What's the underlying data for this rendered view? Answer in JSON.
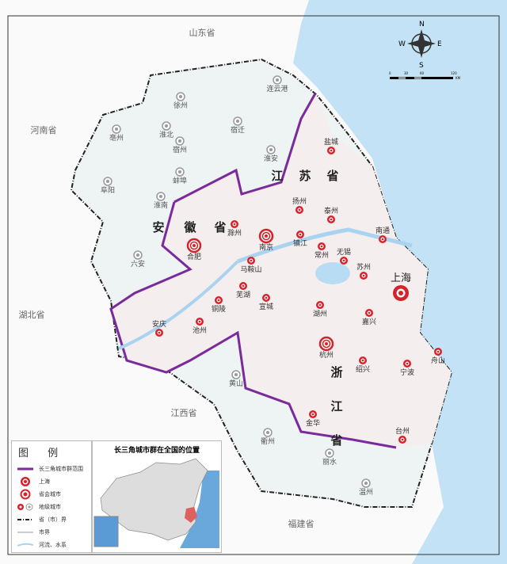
{
  "colors": {
    "region_boundary": "#7a2a9a",
    "city_red": "#d6222a",
    "sea": "#bfe0f5",
    "land": "#f2f2f2"
  },
  "compass": {
    "n": "N",
    "s": "S",
    "e": "E",
    "w": "W",
    "scale_ticks": [
      "0",
      "30",
      "60",
      "120"
    ],
    "scale_unit": "KM"
  },
  "provinces": {
    "shandong": "山东省",
    "henan": "河南省",
    "hubei": "湖北省",
    "jiangxi": "江西省",
    "fujian": "福建省",
    "jiangsu": [
      "江",
      "苏",
      "省"
    ],
    "anhui": [
      "安",
      "徽",
      "省"
    ],
    "zhejiang": [
      "浙",
      "江",
      "省"
    ]
  },
  "cities": {
    "shanghai": "上海",
    "capitals": [
      "南京",
      "合肥",
      "杭州"
    ],
    "members": [
      "盐城",
      "扬州",
      "泰州",
      "南通",
      "镇江",
      "常州",
      "无锡",
      "苏州",
      "滁州",
      "马鞍山",
      "芜湖",
      "铜陵",
      "宣城",
      "池州",
      "安庆",
      "湖州",
      "嘉兴",
      "绍兴",
      "宁波",
      "舟山",
      "金华",
      "台州"
    ],
    "others": [
      "连云港",
      "徐州",
      "宿迁",
      "宿州",
      "淮北",
      "亳州",
      "淮安",
      "蚌埠",
      "阜阳",
      "淮南",
      "六安",
      "黄山",
      "衢州",
      "丽水",
      "温州"
    ]
  },
  "legend": {
    "title": "图 例",
    "items": [
      "长三角城市群范围",
      "上海",
      "省会城市",
      "地级城市",
      "省（市）界",
      "市界",
      "河流、水系"
    ]
  },
  "inset": {
    "title": "长三角城市群在全国的位置"
  }
}
